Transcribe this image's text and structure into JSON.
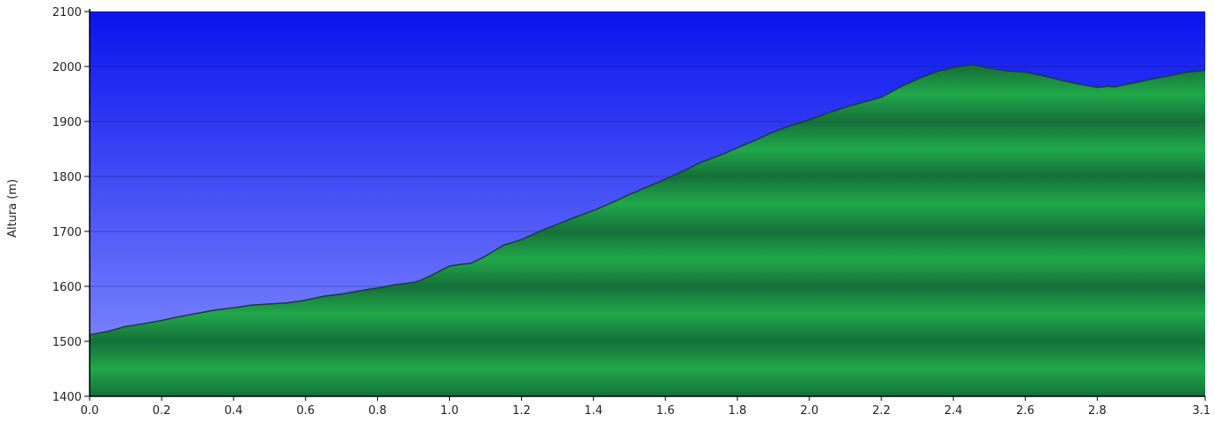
{
  "chart_data": {
    "type": "area",
    "title": "",
    "xlabel": "",
    "ylabel": "Altura (m)",
    "xlim": [
      0.0,
      3.1
    ],
    "ylim": [
      1400,
      2100
    ],
    "x_ticks": [
      "0.0",
      "0.2",
      "0.4",
      "0.6",
      "0.8",
      "1.0",
      "1.2",
      "1.4",
      "1.6",
      "1.8",
      "2.0",
      "2.2",
      "2.4",
      "2.6",
      "2.8",
      "3.1"
    ],
    "x_tick_values": [
      0.0,
      0.2,
      0.4,
      0.6,
      0.8,
      1.0,
      1.2,
      1.4,
      1.6,
      1.8,
      2.0,
      2.2,
      2.4,
      2.6,
      2.8,
      3.1
    ],
    "y_ticks": [
      "1400",
      "1500",
      "1600",
      "1700",
      "1800",
      "1900",
      "2000",
      "2100"
    ],
    "y_tick_values": [
      1400,
      1500,
      1600,
      1700,
      1800,
      1900,
      2000,
      2100
    ],
    "grid": true,
    "legend": "none",
    "colors": {
      "sky_top": "#0a14ee",
      "sky_bottom": "#8a93ff",
      "terrain": "#21a84a",
      "terrain_dark": "#15703a",
      "outline": "#1b3d3a",
      "axis": "#000000"
    },
    "series": [
      {
        "x": [
          0.0,
          0.05,
          0.1,
          0.15,
          0.2,
          0.25,
          0.3,
          0.35,
          0.4,
          0.45,
          0.5,
          0.55,
          0.6,
          0.65,
          0.7,
          0.75,
          0.8,
          0.85,
          0.9,
          0.92,
          0.95,
          1.0,
          1.03,
          1.06,
          1.1,
          1.15,
          1.2,
          1.25,
          1.3,
          1.35,
          1.4,
          1.45,
          1.5,
          1.55,
          1.6,
          1.65,
          1.7,
          1.75,
          1.8,
          1.85,
          1.9,
          1.95,
          2.0,
          2.05,
          2.1,
          2.15,
          2.2,
          2.25,
          2.3,
          2.35,
          2.4,
          2.45,
          2.48,
          2.5,
          2.55,
          2.6,
          2.65,
          2.7,
          2.75,
          2.8,
          2.83,
          2.85,
          2.9,
          2.95,
          3.0,
          3.05,
          3.1
        ],
        "y": [
          1512,
          1518,
          1527,
          1532,
          1538,
          1545,
          1551,
          1557,
          1561,
          1566,
          1568,
          1570,
          1575,
          1582,
          1586,
          1592,
          1597,
          1603,
          1607,
          1611,
          1620,
          1637,
          1640,
          1642,
          1655,
          1675,
          1685,
          1700,
          1713,
          1726,
          1738,
          1752,
          1767,
          1781,
          1795,
          1810,
          1826,
          1838,
          1852,
          1866,
          1881,
          1893,
          1903,
          1915,
          1926,
          1935,
          1944,
          1962,
          1977,
          1990,
          1998,
          2003,
          2000,
          1997,
          1992,
          1990,
          1983,
          1975,
          1968,
          1962,
          1964,
          1963,
          1970,
          1977,
          1983,
          1990,
          1993
        ]
      }
    ]
  }
}
